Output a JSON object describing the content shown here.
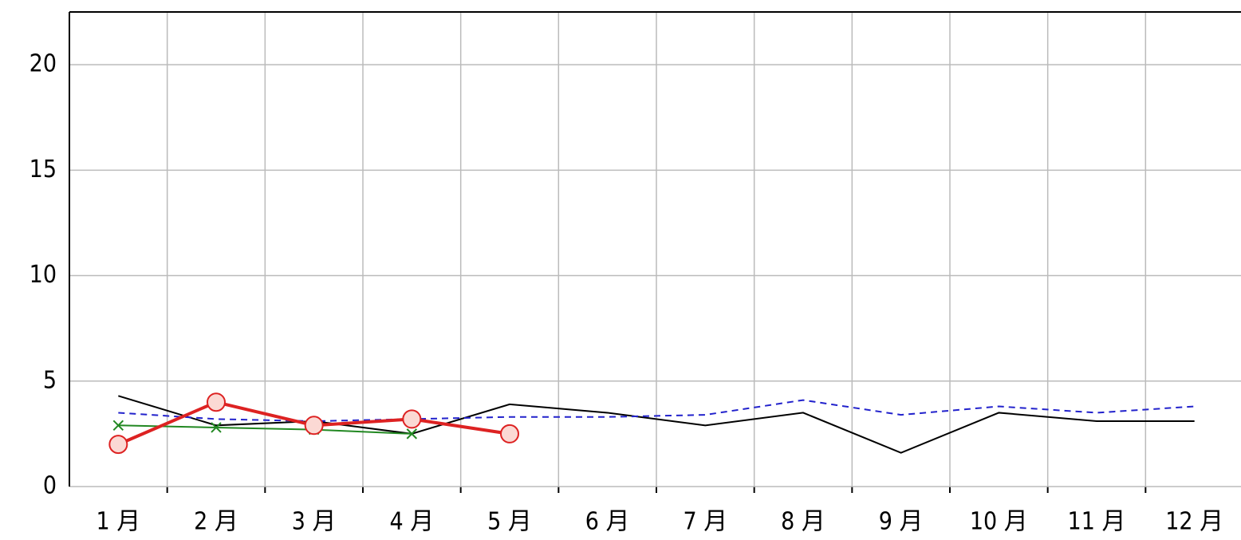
{
  "chart_data": {
    "type": "line",
    "categories": [
      "1 月",
      "2 月",
      "3 月",
      "4 月",
      "5 月",
      "6 月",
      "7 月",
      "8 月",
      "9 月",
      "10 月",
      "11 月",
      "12 月"
    ],
    "series": [
      {
        "color": "#000000",
        "style": "solid",
        "width": 2,
        "values": [
          4.3,
          2.9,
          3.1,
          2.5,
          3.9,
          3.5,
          2.9,
          3.5,
          1.6,
          3.5,
          3.1,
          3.1
        ]
      },
      {
        "color": "#2222cc",
        "style": "dashed",
        "width": 2,
        "values": [
          3.5,
          3.2,
          3.1,
          3.2,
          3.3,
          3.3,
          3.4,
          4.1,
          3.4,
          3.8,
          3.5,
          3.8
        ]
      },
      {
        "color": "#228822",
        "style": "solid",
        "width": 2,
        "marker": "x",
        "values": [
          2.9,
          2.8,
          2.7,
          2.5,
          null,
          null,
          null,
          null,
          null,
          null,
          null,
          null
        ]
      },
      {
        "color": "#dd2222",
        "style": "solid",
        "width": 4,
        "marker": "circle",
        "values": [
          2.0,
          4.0,
          2.9,
          3.2,
          2.5,
          null,
          null,
          null,
          null,
          null,
          null,
          null
        ]
      }
    ],
    "ylim": [
      0,
      22.5
    ],
    "yticks": [
      0,
      5,
      10,
      15,
      20
    ],
    "grid": true
  }
}
